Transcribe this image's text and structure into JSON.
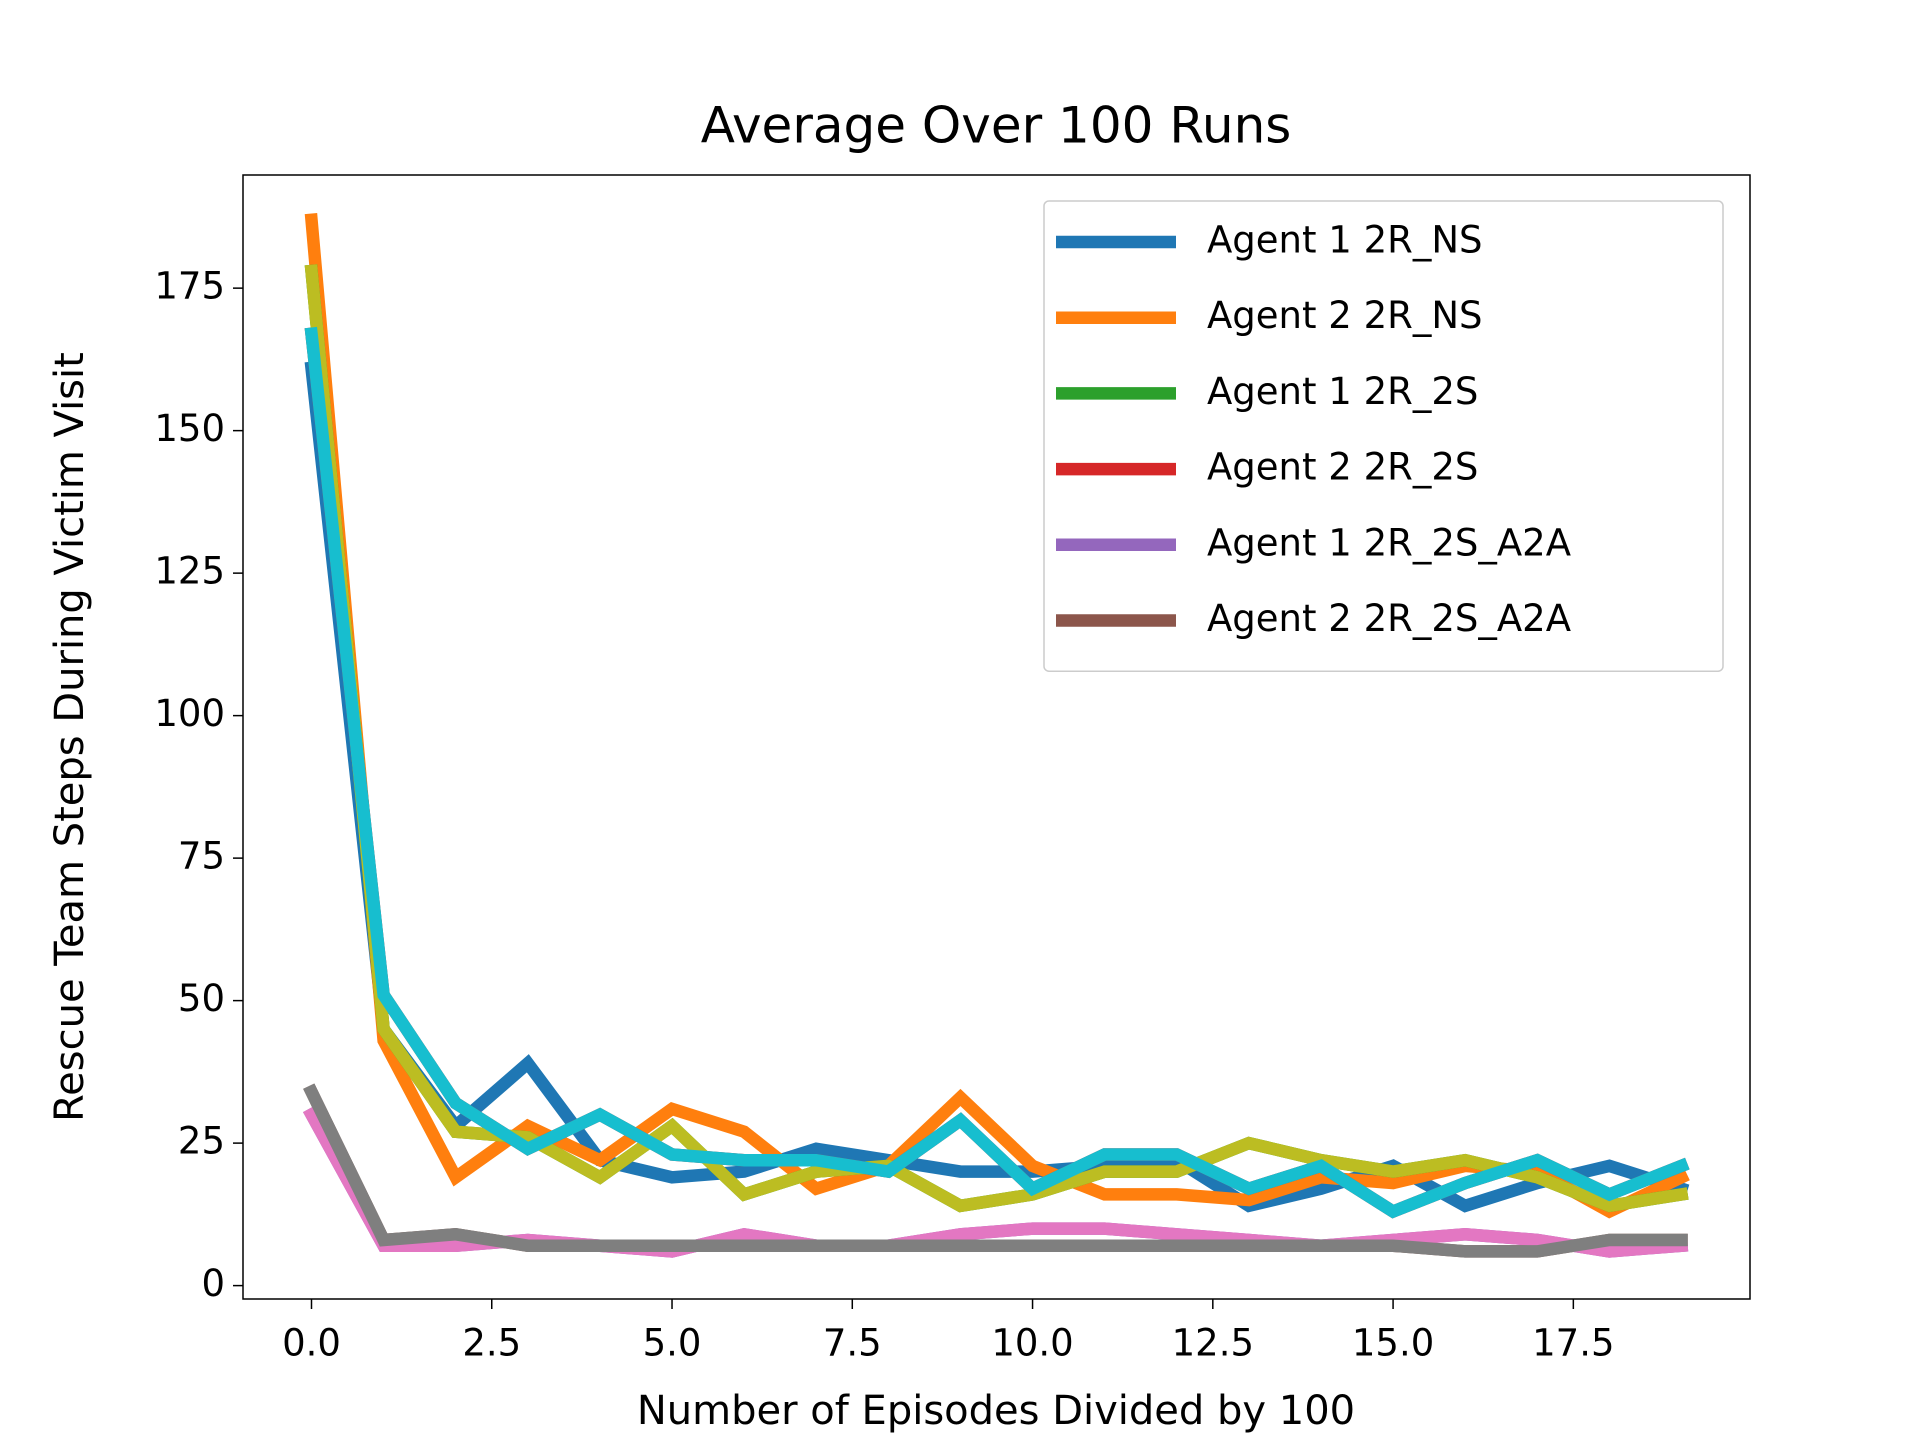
{
  "chart_data": {
    "type": "line",
    "title": "Average Over 100 Runs",
    "x_label": "Number of Episodes Divided by 100",
    "y_label": "Rescue Team Steps During Victim Visit",
    "x": [
      0,
      1,
      2,
      3,
      4,
      5,
      6,
      7,
      8,
      9,
      10,
      11,
      12,
      13,
      14,
      15,
      16,
      17,
      18,
      19
    ],
    "series": [
      {
        "name": "Agent 1 2R_NS",
        "color": "#1f77b4",
        "values": [
          161,
          45,
          28,
          39,
          22,
          19,
          20,
          24,
          22,
          20,
          20,
          21,
          22,
          14,
          17,
          21,
          14,
          18,
          21,
          17
        ]
      },
      {
        "name": "Agent 2 2R_NS",
        "color": "#ff7f0e",
        "values": [
          187,
          43,
          19,
          28,
          22,
          31,
          27,
          17,
          21,
          33,
          21,
          16,
          16,
          15,
          19,
          18,
          21,
          20,
          13,
          19
        ]
      },
      {
        "name": "Agent 1 2R_2S",
        "color": "#2ca02c",
        "values": [
          178,
          45,
          27,
          26,
          19,
          28,
          16,
          20,
          21,
          14,
          16,
          20,
          20,
          25,
          22,
          20,
          22,
          19,
          14,
          16
        ]
      },
      {
        "name": "Agent 2 2R_2S",
        "color": "#d62728",
        "values": [
          167,
          51,
          32,
          24,
          30,
          23,
          22,
          22,
          20,
          29,
          17,
          23,
          23,
          17,
          21,
          13,
          18,
          22,
          16,
          21
        ]
      },
      {
        "name": "Agent 1 2R_2S_A2A",
        "color": "#9467bd",
        "values": [
          30,
          7,
          7,
          8,
          7,
          6,
          9,
          7,
          7,
          9,
          10,
          10,
          9,
          8,
          7,
          8,
          9,
          8,
          6,
          7
        ]
      },
      {
        "name": "Agent 2 2R_2S_A2A",
        "color": "#8c564b",
        "values": [
          34,
          8,
          9,
          7,
          7,
          7,
          7,
          7,
          7,
          7,
          7,
          7,
          7,
          7,
          7,
          7,
          6,
          6,
          8,
          8
        ]
      },
      {
        "color": "#e377c2",
        "values": [
          30,
          7,
          7,
          8,
          7,
          6,
          9,
          7,
          7,
          9,
          10,
          10,
          9,
          8,
          7,
          8,
          9,
          8,
          6,
          7
        ]
      },
      {
        "color": "#7f7f7f",
        "values": [
          34,
          8,
          9,
          7,
          7,
          7,
          7,
          7,
          7,
          7,
          7,
          7,
          7,
          7,
          7,
          7,
          6,
          6,
          8,
          8
        ]
      },
      {
        "color": "#bcbd22",
        "values": [
          178,
          45,
          27,
          26,
          19,
          28,
          16,
          20,
          21,
          14,
          16,
          20,
          20,
          25,
          22,
          20,
          22,
          19,
          14,
          16
        ]
      },
      {
        "color": "#17becf",
        "values": [
          167,
          51,
          32,
          24,
          30,
          23,
          22,
          22,
          20,
          29,
          17,
          23,
          23,
          17,
          21,
          13,
          18,
          22,
          16,
          21
        ]
      }
    ],
    "xlim": [
      -0.95,
      19.95
    ],
    "xticks": [
      {
        "value": 0,
        "label": "0.0"
      },
      {
        "value": 2.5,
        "label": "2.5"
      },
      {
        "value": 5,
        "label": "5.0"
      },
      {
        "value": 7.5,
        "label": "7.5"
      },
      {
        "value": 10,
        "label": "10.0"
      },
      {
        "value": 12.5,
        "label": "12.5"
      },
      {
        "value": 15,
        "label": "15.0"
      },
      {
        "value": 17.5,
        "label": "17.5"
      }
    ],
    "ylim": [
      -2.35,
      194.85
    ],
    "yticks": [
      0,
      25,
      50,
      75,
      100,
      125,
      150,
      175
    ],
    "legend": "upper right"
  }
}
